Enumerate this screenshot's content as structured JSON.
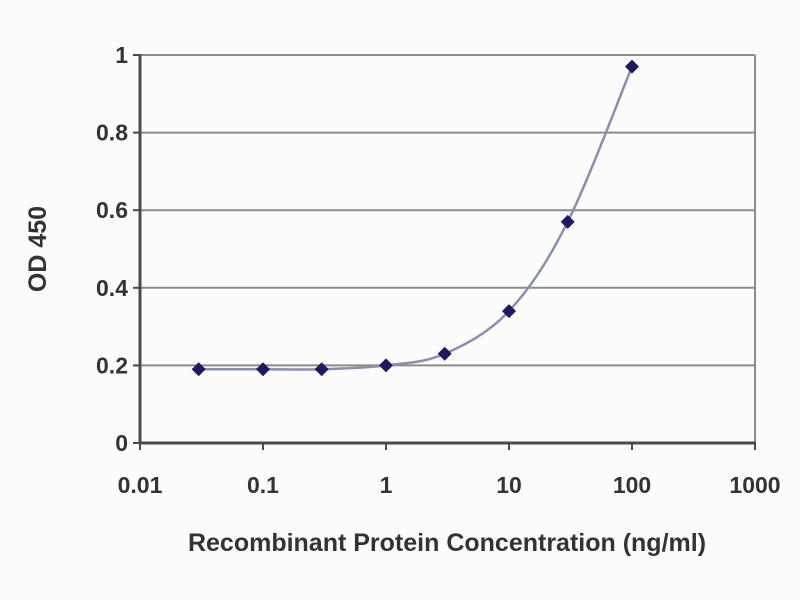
{
  "chart_data": {
    "type": "line",
    "title": "",
    "xlabel": "Recombinant Protein Concentration (ng/ml)",
    "ylabel": "OD 450",
    "x_scale": "log",
    "xlim": [
      0.01,
      1000
    ],
    "ylim": [
      0,
      1
    ],
    "x_ticks": [
      0.01,
      0.1,
      1,
      10,
      100,
      1000
    ],
    "x_tick_labels": [
      "0.01",
      "0.1",
      "1",
      "10",
      "100",
      "1000"
    ],
    "y_ticks": [
      0,
      0.2,
      0.4,
      0.6,
      0.8,
      1
    ],
    "y_tick_labels": [
      "0",
      "0.2",
      "0.4",
      "0.6",
      "0.8",
      "1"
    ],
    "grid": "horizontal",
    "legend": "none",
    "colors": {
      "line": "#8a8fab",
      "marker": "#1f1a5f",
      "grid": "#8c8c8c",
      "axis": "#4a4a4a",
      "text": "#333333",
      "background": "#fcfcfc"
    },
    "series": [
      {
        "name": "OD 450",
        "marker": "diamond",
        "points": [
          {
            "x": 0.03,
            "y": 0.19
          },
          {
            "x": 0.1,
            "y": 0.19
          },
          {
            "x": 0.3,
            "y": 0.19
          },
          {
            "x": 1,
            "y": 0.2
          },
          {
            "x": 3,
            "y": 0.23
          },
          {
            "x": 10,
            "y": 0.34
          },
          {
            "x": 30,
            "y": 0.57
          },
          {
            "x": 100,
            "y": 0.97
          }
        ]
      }
    ]
  }
}
